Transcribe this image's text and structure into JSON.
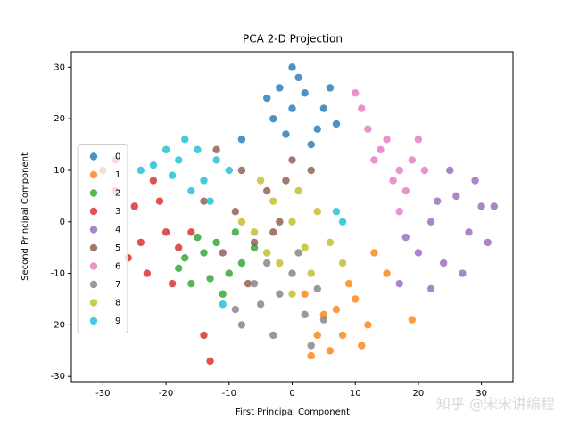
{
  "chart_data": {
    "type": "scatter",
    "title": "PCA 2-D Projection",
    "x_label": "First Principal Component",
    "y_label": "Second Principal Component",
    "xlim": [
      -35,
      35
    ],
    "ylim": [
      -31,
      33
    ],
    "xticks": [
      -30,
      -20,
      -10,
      0,
      10,
      20,
      30
    ],
    "yticks": [
      -30,
      -20,
      -10,
      0,
      10,
      20,
      30
    ],
    "grid": false,
    "legend": "center left",
    "alpha": 0.8,
    "watermark": "知乎 @宋宋讲编程",
    "series": [
      {
        "name": "0",
        "color": "#1f77b4",
        "x": [
          0,
          2,
          -3,
          4,
          1,
          -2,
          5,
          3,
          -4,
          7,
          -1,
          6,
          0,
          -8
        ],
        "y": [
          22,
          25,
          20,
          18,
          28,
          26,
          22,
          15,
          24,
          19,
          17,
          26,
          30,
          16
        ]
      },
      {
        "name": "1",
        "color": "#ff7f0e",
        "x": [
          5,
          8,
          10,
          6,
          3,
          12,
          9,
          4,
          15,
          11,
          7,
          19,
          13,
          2
        ],
        "y": [
          -18,
          -22,
          -15,
          -25,
          -26,
          -20,
          -12,
          -22,
          -10,
          -24,
          -17,
          -19,
          -6,
          -14
        ]
      },
      {
        "name": "2",
        "color": "#2ca02c",
        "x": [
          -14,
          -10,
          -16,
          -12,
          -8,
          -18,
          -11,
          -15,
          -6,
          -13,
          -9,
          -17
        ],
        "y": [
          -6,
          -10,
          -12,
          -4,
          -8,
          -9,
          -14,
          -3,
          -5,
          -11,
          -2,
          -7
        ]
      },
      {
        "name": "3",
        "color": "#d62728",
        "x": [
          -25,
          -20,
          -28,
          -22,
          -18,
          -24,
          -30,
          -26,
          -21,
          -16,
          -23,
          -19,
          -14,
          -13,
          -28
        ],
        "y": [
          3,
          -2,
          6,
          8,
          -5,
          -4,
          10,
          -7,
          4,
          -2,
          -10,
          -12,
          -22,
          -27,
          12
        ]
      },
      {
        "name": "4",
        "color": "#9467bd",
        "x": [
          22,
          26,
          28,
          20,
          25,
          30,
          18,
          24,
          27,
          31,
          29,
          23,
          17,
          22,
          32
        ],
        "y": [
          0,
          5,
          -2,
          -6,
          10,
          3,
          -3,
          -8,
          -10,
          -4,
          8,
          4,
          -12,
          -13,
          3
        ]
      },
      {
        "name": "5",
        "color": "#8c564b",
        "x": [
          -8,
          -4,
          -12,
          -3,
          -9,
          0,
          -6,
          -14,
          -1,
          3,
          -11,
          -7,
          -2
        ],
        "y": [
          10,
          6,
          14,
          -2,
          2,
          12,
          -4,
          4,
          8,
          10,
          -6,
          -12,
          0
        ]
      },
      {
        "name": "6",
        "color": "#e377c2",
        "x": [
          14,
          17,
          15,
          19,
          12,
          18,
          21,
          11,
          16,
          13,
          20,
          17,
          10
        ],
        "y": [
          14,
          10,
          16,
          12,
          18,
          6,
          10,
          22,
          8,
          12,
          16,
          2,
          25
        ]
      },
      {
        "name": "7",
        "color": "#7f7f7f",
        "x": [
          -2,
          2,
          -5,
          0,
          4,
          -8,
          -3,
          1,
          5,
          -6,
          3,
          -9,
          -4
        ],
        "y": [
          -14,
          -18,
          -16,
          -10,
          -13,
          -20,
          -22,
          -6,
          -19,
          -12,
          -24,
          -17,
          -8
        ]
      },
      {
        "name": "8",
        "color": "#bcbd22",
        "x": [
          0,
          -3,
          2,
          -6,
          4,
          -2,
          1,
          -5,
          6,
          -4,
          3,
          -8,
          8,
          0
        ],
        "y": [
          0,
          4,
          -5,
          -2,
          2,
          -8,
          6,
          8,
          -4,
          -6,
          -10,
          0,
          -8,
          -14
        ]
      },
      {
        "name": "9",
        "color": "#17becf",
        "x": [
          -18,
          -14,
          -20,
          -12,
          -16,
          -22,
          -10,
          -15,
          -19,
          -13,
          -24,
          -17,
          7,
          -11,
          8
        ],
        "y": [
          12,
          8,
          14,
          12,
          6,
          11,
          10,
          14,
          9,
          4,
          10,
          16,
          2,
          -16,
          0
        ]
      }
    ]
  }
}
